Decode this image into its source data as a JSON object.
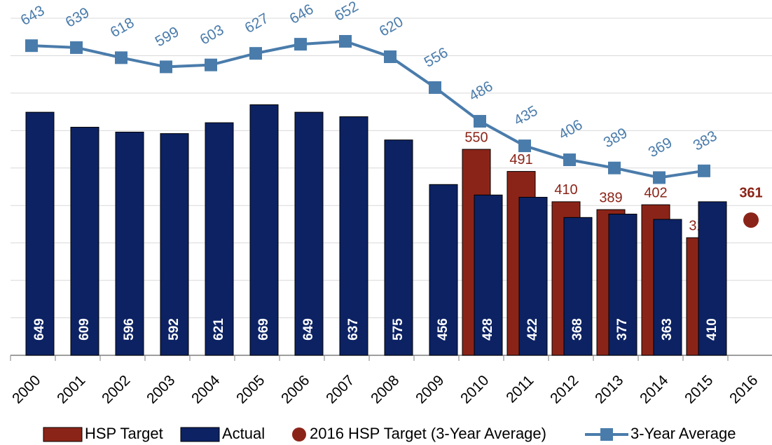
{
  "chart_data": {
    "type": "bar",
    "categories": [
      "2000",
      "2001",
      "2002",
      "2003",
      "2004",
      "2005",
      "2006",
      "2007",
      "2008",
      "2009",
      "2010",
      "2011",
      "2012",
      "2013",
      "2014",
      "2015",
      "2016"
    ],
    "ylim": [
      0,
      900
    ],
    "yticks": [
      0,
      100,
      200,
      300,
      400,
      500,
      600,
      700,
      800,
      900
    ],
    "y2lim": [
      0,
      700
    ],
    "grid": true,
    "legend": "bottom",
    "series": [
      {
        "name": "HSP Target",
        "type": "bar",
        "color": "#8b2418",
        "values": [
          null,
          null,
          null,
          null,
          null,
          null,
          null,
          null,
          null,
          null,
          550,
          491,
          410,
          389,
          402,
          314,
          null
        ]
      },
      {
        "name": "Actual",
        "type": "bar",
        "color": "#0c2263",
        "values": [
          649,
          609,
          596,
          592,
          621,
          669,
          649,
          637,
          575,
          456,
          428,
          422,
          368,
          377,
          363,
          410,
          null
        ]
      },
      {
        "name": "2016 HSP Target (3-Year Average)",
        "type": "scatter",
        "color": "#8b2418",
        "values": [
          null,
          null,
          null,
          null,
          null,
          null,
          null,
          null,
          null,
          null,
          null,
          null,
          null,
          null,
          null,
          null,
          361
        ]
      },
      {
        "name": "3-Year Average",
        "type": "line",
        "axis": "y2",
        "color": "#4a7cab",
        "values": [
          643,
          639,
          618,
          599,
          603,
          627,
          646,
          652,
          620,
          556,
          486,
          435,
          406,
          389,
          369,
          383,
          null
        ]
      }
    ]
  }
}
